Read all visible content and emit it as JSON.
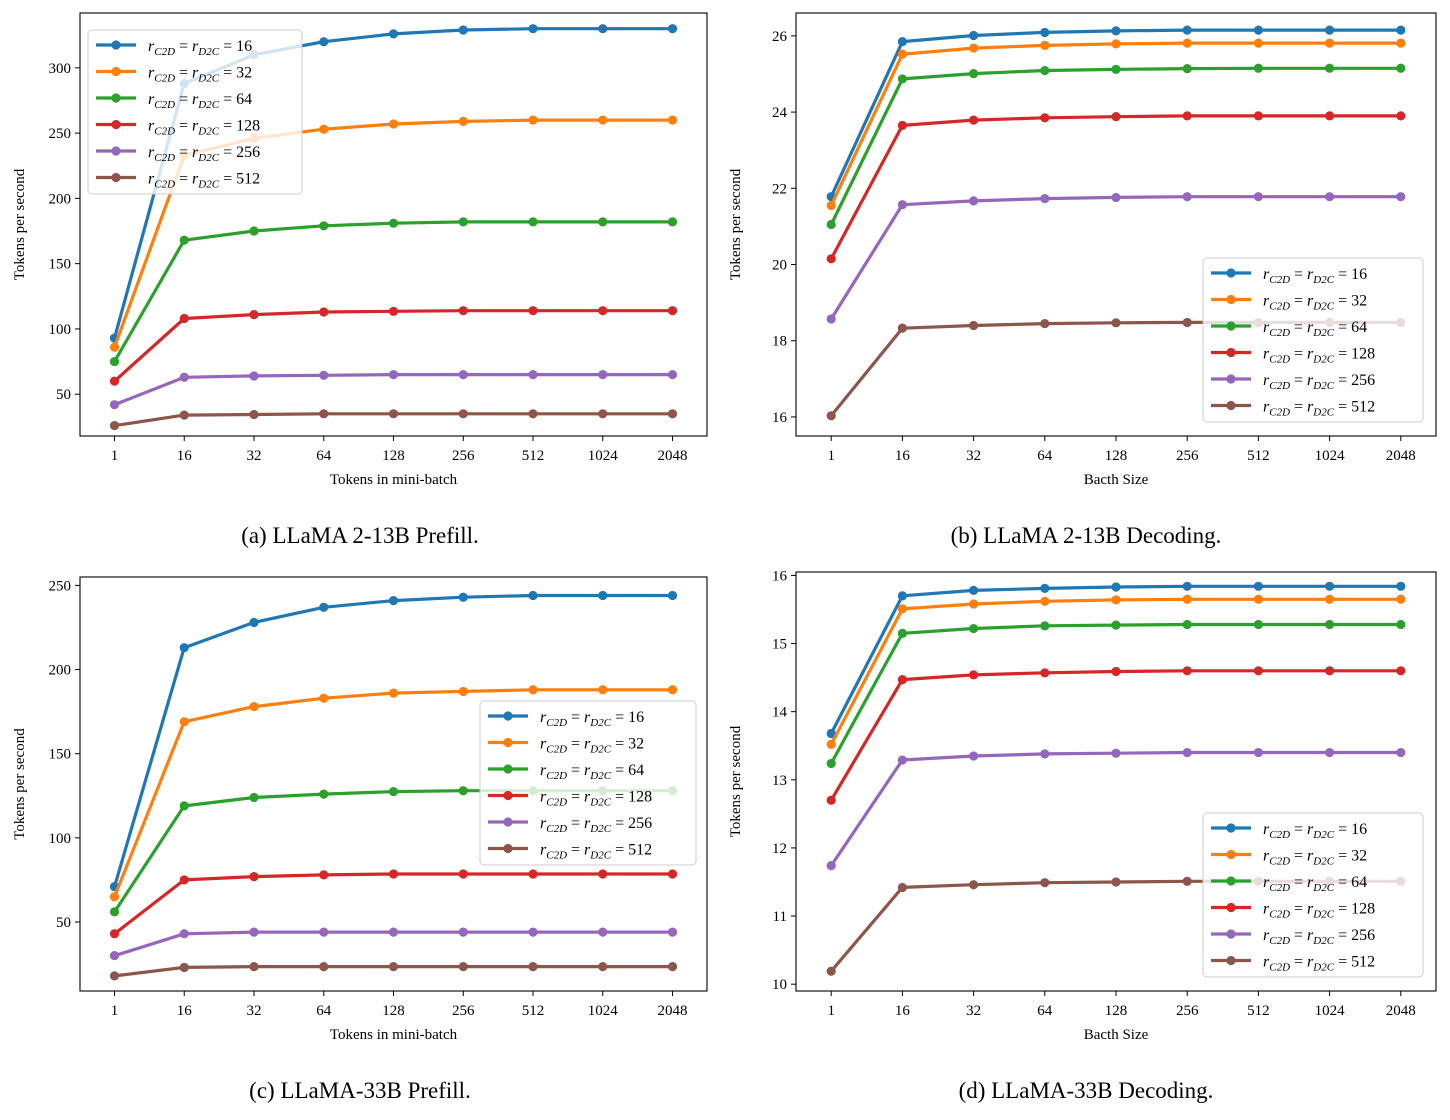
{
  "chart_data": [
    {
      "type": "line",
      "caption": "(a) LLaMA 2-13B Prefill.",
      "xlabel": "Tokens in mini-batch",
      "ylabel": "Tokens per second",
      "categories": [
        "1",
        "16",
        "32",
        "64",
        "128",
        "256",
        "512",
        "1024",
        "2048"
      ],
      "ylim": [
        18,
        342
      ],
      "yticks": [
        50,
        100,
        150,
        200,
        250,
        300
      ],
      "legend_position": "upper-left",
      "series": [
        {
          "name": "r_C2D = r_D2C = 16",
          "color": "#1f77b4",
          "values": [
            93,
            288,
            310,
            320,
            326,
            329,
            330,
            330,
            330
          ]
        },
        {
          "name": "r_C2D = r_D2C = 32",
          "color": "#ff7f0e",
          "values": [
            86,
            233,
            246,
            253,
            257,
            259,
            260,
            260,
            260
          ]
        },
        {
          "name": "r_C2D = r_D2C = 64",
          "color": "#2ca02c",
          "values": [
            75,
            168,
            175,
            179,
            181,
            182,
            182,
            182,
            182
          ]
        },
        {
          "name": "r_C2D = r_D2C = 128",
          "color": "#d62728",
          "values": [
            60,
            108,
            111,
            113,
            113.5,
            114,
            114,
            114,
            114
          ]
        },
        {
          "name": "r_C2D = r_D2C = 256",
          "color": "#9467bd",
          "values": [
            42,
            63,
            64,
            64.5,
            65,
            65,
            65,
            65,
            65
          ]
        },
        {
          "name": "r_C2D = r_D2C = 512",
          "color": "#8c564b",
          "values": [
            26,
            34,
            34.5,
            35,
            35,
            35,
            35,
            35,
            35
          ]
        }
      ]
    },
    {
      "type": "line",
      "caption": "(b) LLaMA 2-13B Decoding.",
      "xlabel": "Bacth Size",
      "ylabel": "Tokens per second",
      "categories": [
        "1",
        "16",
        "32",
        "64",
        "128",
        "256",
        "512",
        "1024",
        "2048"
      ],
      "ylim": [
        15.5,
        26.6
      ],
      "yticks": [
        16,
        18,
        20,
        22,
        24,
        26
      ],
      "legend_position": "lower-right",
      "series": [
        {
          "name": "r_C2D = r_D2C = 16",
          "color": "#1f77b4",
          "values": [
            21.78,
            25.85,
            26.01,
            26.09,
            26.13,
            26.15,
            26.15,
            26.15,
            26.15
          ]
        },
        {
          "name": "r_C2D = r_D2C = 32",
          "color": "#ff7f0e",
          "values": [
            21.55,
            25.52,
            25.68,
            25.75,
            25.79,
            25.81,
            25.81,
            25.81,
            25.81
          ]
        },
        {
          "name": "r_C2D = r_D2C = 64",
          "color": "#2ca02c",
          "values": [
            21.05,
            24.87,
            25.01,
            25.09,
            25.12,
            25.14,
            25.15,
            25.15,
            25.15
          ]
        },
        {
          "name": "r_C2D = r_D2C = 128",
          "color": "#d62728",
          "values": [
            20.15,
            23.65,
            23.79,
            23.85,
            23.88,
            23.9,
            23.9,
            23.9,
            23.9
          ]
        },
        {
          "name": "r_C2D = r_D2C = 256",
          "color": "#9467bd",
          "values": [
            18.57,
            21.57,
            21.67,
            21.73,
            21.76,
            21.78,
            21.78,
            21.78,
            21.78
          ]
        },
        {
          "name": "r_C2D = r_D2C = 512",
          "color": "#8c564b",
          "values": [
            16.03,
            18.33,
            18.4,
            18.45,
            18.47,
            18.48,
            18.48,
            18.48,
            18.48
          ]
        }
      ]
    },
    {
      "type": "line",
      "caption": "(c) LLaMA-33B Prefill.",
      "xlabel": "Tokens in mini-batch",
      "ylabel": "Tokens per second",
      "categories": [
        "1",
        "16",
        "32",
        "64",
        "128",
        "256",
        "512",
        "1024",
        "2048"
      ],
      "ylim": [
        9,
        255
      ],
      "yticks": [
        50,
        100,
        150,
        200,
        250
      ],
      "legend_position": "center-right",
      "series": [
        {
          "name": "r_C2D = r_D2C = 16",
          "color": "#1f77b4",
          "values": [
            71,
            213,
            228,
            237,
            241,
            243,
            244,
            244,
            244
          ]
        },
        {
          "name": "r_C2D = r_D2C = 32",
          "color": "#ff7f0e",
          "values": [
            65,
            169,
            178,
            183,
            186,
            187,
            188,
            188,
            188
          ]
        },
        {
          "name": "r_C2D = r_D2C = 64",
          "color": "#2ca02c",
          "values": [
            56,
            119,
            124,
            126,
            127.5,
            128,
            128,
            128,
            128
          ]
        },
        {
          "name": "r_C2D = r_D2C = 128",
          "color": "#d62728",
          "values": [
            43,
            75,
            77,
            78,
            78.5,
            78.5,
            78.5,
            78.5,
            78.5
          ]
        },
        {
          "name": "r_C2D = r_D2C = 256",
          "color": "#9467bd",
          "values": [
            30,
            43,
            44,
            44,
            44,
            44,
            44,
            44,
            44
          ]
        },
        {
          "name": "r_C2D = r_D2C = 512",
          "color": "#8c564b",
          "values": [
            18,
            23,
            23.5,
            23.5,
            23.5,
            23.5,
            23.5,
            23.5,
            23.5
          ]
        }
      ]
    },
    {
      "type": "line",
      "caption": "(d) LLaMA-33B Decoding.",
      "xlabel": "Bacth Size",
      "ylabel": "Tokens per second",
      "categories": [
        "1",
        "16",
        "32",
        "64",
        "128",
        "256",
        "512",
        "1024",
        "2048"
      ],
      "ylim": [
        9.9,
        16.05
      ],
      "yticks": [
        10,
        11,
        12,
        13,
        14,
        15,
        16
      ],
      "legend_position": "lower-right",
      "series": [
        {
          "name": "r_C2D = r_D2C = 16",
          "color": "#1f77b4",
          "values": [
            13.68,
            15.7,
            15.78,
            15.81,
            15.83,
            15.84,
            15.84,
            15.84,
            15.84
          ]
        },
        {
          "name": "r_C2D = r_D2C = 32",
          "color": "#ff7f0e",
          "values": [
            13.52,
            15.51,
            15.58,
            15.62,
            15.64,
            15.65,
            15.65,
            15.65,
            15.65
          ]
        },
        {
          "name": "r_C2D = r_D2C = 64",
          "color": "#2ca02c",
          "values": [
            13.24,
            15.15,
            15.22,
            15.26,
            15.27,
            15.28,
            15.28,
            15.28,
            15.28
          ]
        },
        {
          "name": "r_C2D = r_D2C = 128",
          "color": "#d62728",
          "values": [
            12.7,
            14.47,
            14.54,
            14.57,
            14.59,
            14.6,
            14.6,
            14.6,
            14.6
          ]
        },
        {
          "name": "r_C2D = r_D2C = 256",
          "color": "#9467bd",
          "values": [
            11.74,
            13.29,
            13.35,
            13.38,
            13.39,
            13.4,
            13.4,
            13.4,
            13.4
          ]
        },
        {
          "name": "r_C2D = r_D2C = 512",
          "color": "#8c564b",
          "values": [
            10.19,
            11.42,
            11.46,
            11.49,
            11.5,
            11.51,
            11.51,
            11.51,
            11.51
          ]
        }
      ]
    }
  ]
}
